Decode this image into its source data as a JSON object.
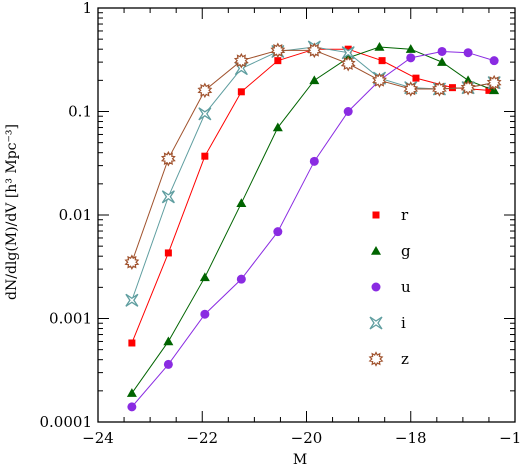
{
  "chart_data": {
    "type": "line",
    "xlabel": "M",
    "ylabel": "dN/dlg(M)/dV  [h³ Mpc⁻³]",
    "xlim": [
      -24,
      -16
    ],
    "ylim": [
      0.0001,
      1
    ],
    "yscale": "log",
    "x_ticks": [
      -24,
      -22,
      -20,
      -18,
      -16
    ],
    "x_tick_labels": [
      "−24",
      "−22",
      "−20",
      "−18",
      "−16"
    ],
    "y_ticks": [
      0.0001,
      0.001,
      0.01,
      0.1,
      1
    ],
    "y_tick_labels": [
      "0.0001",
      "0.001",
      "0.01",
      "0.1",
      "1"
    ],
    "legend_position": "right",
    "series": [
      {
        "name": "r",
        "color": "#ff0000",
        "marker": "square",
        "x": [
          -23.35,
          -22.65,
          -21.95,
          -21.25,
          -20.55,
          -19.85,
          -19.2,
          -18.55,
          -17.9,
          -17.2,
          -16.5
        ],
        "y": [
          0.00058,
          0.0043,
          0.037,
          0.155,
          0.31,
          0.4,
          0.4,
          0.31,
          0.21,
          0.17,
          0.16
        ]
      },
      {
        "name": "g",
        "color": "#006400",
        "marker": "triangle",
        "x": [
          -23.35,
          -22.65,
          -21.95,
          -21.25,
          -20.55,
          -19.85,
          -19.2,
          -18.6,
          -18.0,
          -17.4,
          -16.9,
          -16.4
        ],
        "y": [
          0.00019,
          0.0006,
          0.0025,
          0.013,
          0.07,
          0.2,
          0.33,
          0.42,
          0.4,
          0.3,
          0.2,
          0.16
        ]
      },
      {
        "name": "u",
        "color": "#8a2be2",
        "marker": "circle",
        "x": [
          -23.35,
          -22.65,
          -21.95,
          -21.25,
          -20.55,
          -19.85,
          -19.2,
          -18.6,
          -18.0,
          -17.4,
          -16.9,
          -16.4
        ],
        "y": [
          0.00014,
          0.00036,
          0.0011,
          0.0024,
          0.0069,
          0.033,
          0.1,
          0.2,
          0.33,
          0.38,
          0.37,
          0.31
        ]
      },
      {
        "name": "i",
        "color": "#5f9ea0",
        "marker": "star4",
        "x": [
          -23.35,
          -22.65,
          -21.95,
          -21.25,
          -20.55,
          -19.85,
          -19.2,
          -18.6,
          -18.0,
          -17.45,
          -16.9,
          -16.4
        ],
        "y": [
          0.0015,
          0.015,
          0.095,
          0.26,
          0.38,
          0.42,
          0.37,
          0.21,
          0.17,
          0.165,
          0.17,
          0.19
        ]
      },
      {
        "name": "z",
        "color": "#a0522d",
        "marker": "burst",
        "x": [
          -23.35,
          -22.65,
          -21.95,
          -21.25,
          -20.55,
          -19.85,
          -19.2,
          -18.6,
          -18.0,
          -17.45,
          -16.9,
          -16.4
        ],
        "y": [
          0.0035,
          0.035,
          0.16,
          0.31,
          0.39,
          0.39,
          0.29,
          0.2,
          0.165,
          0.165,
          0.17,
          0.19
        ]
      }
    ]
  }
}
